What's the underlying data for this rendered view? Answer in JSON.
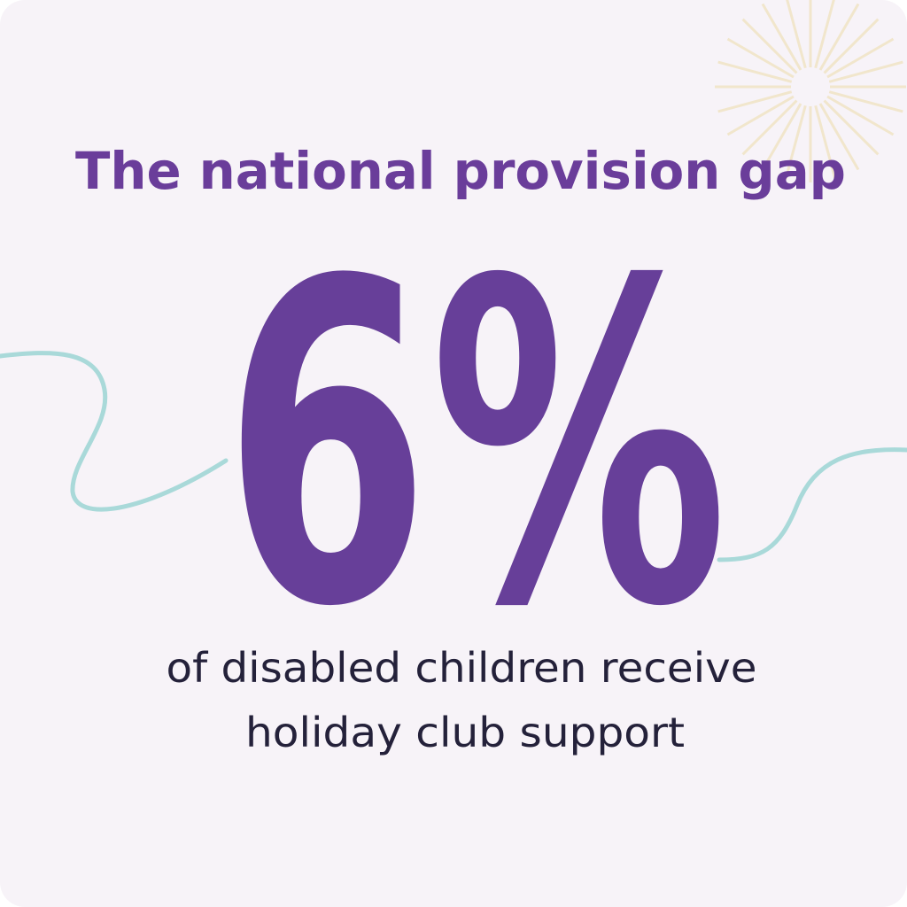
{
  "title": "The national provision gap",
  "stat": "6%",
  "caption": [
    "of disabled children receive",
    "holiday club support"
  ]
}
